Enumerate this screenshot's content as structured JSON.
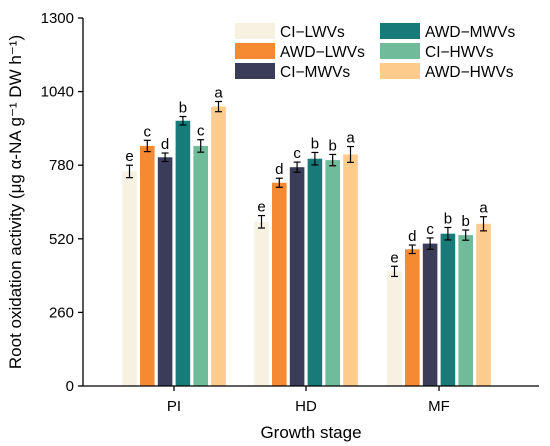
{
  "chart_data": {
    "type": "bar",
    "xlabel": "Growth stage",
    "ylabel": "Root oxidation activity (μg α-NA g⁻¹ DW h⁻¹)",
    "ylim": [
      0,
      1300
    ],
    "yticks": [
      0,
      260,
      520,
      780,
      1040,
      1300
    ],
    "categories": [
      "PI",
      "HD",
      "MF"
    ],
    "legend_position": "top-right",
    "series": [
      {
        "name": "CI−LWVs",
        "color": "#F7F1E1",
        "values": [
          758,
          580,
          405
        ],
        "errors": [
          22,
          22,
          18
        ],
        "letters": [
          "e",
          "e",
          "e"
        ]
      },
      {
        "name": "AWD−LWVs",
        "color": "#F68A33",
        "values": [
          848,
          718,
          483
        ],
        "errors": [
          20,
          16,
          15
        ],
        "letters": [
          "c",
          "d",
          "d"
        ]
      },
      {
        "name": "CI−MWVs",
        "color": "#3B3C5A",
        "values": [
          808,
          773,
          503
        ],
        "errors": [
          15,
          18,
          20
        ],
        "letters": [
          "d",
          "c",
          "c"
        ]
      },
      {
        "name": "AWD−MWVs",
        "color": "#177B7A",
        "values": [
          937,
          803,
          538
        ],
        "errors": [
          15,
          22,
          22
        ],
        "letters": [
          "b",
          "b",
          "b"
        ]
      },
      {
        "name": "CI−HWVs",
        "color": "#70BB9A",
        "values": [
          848,
          798,
          533
        ],
        "errors": [
          22,
          20,
          18
        ],
        "letters": [
          "c",
          "b",
          "b"
        ]
      },
      {
        "name": "AWD−HWVs",
        "color": "#FDCB8C",
        "values": [
          987,
          818,
          573
        ],
        "errors": [
          18,
          28,
          25
        ],
        "letters": [
          "a",
          "a",
          "a"
        ]
      }
    ]
  }
}
